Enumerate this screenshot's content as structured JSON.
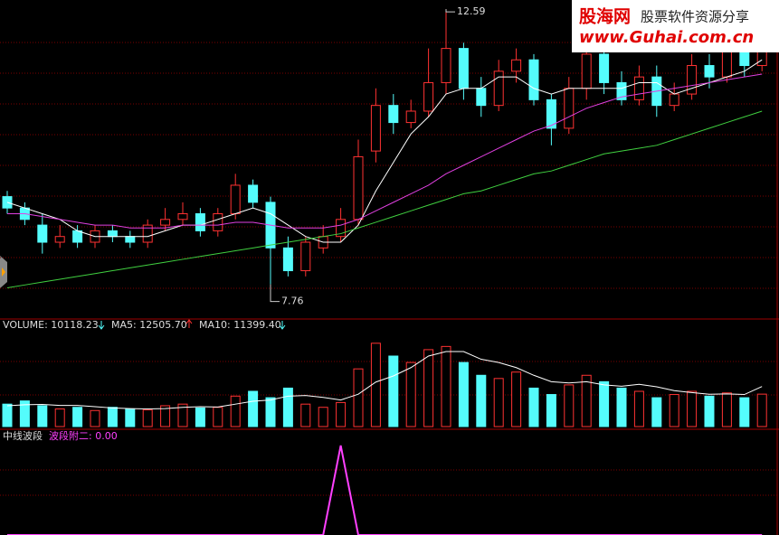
{
  "chart_data": {
    "type": "candlestick",
    "open": [
      9.3,
      9.1,
      8.8,
      8.5,
      8.7,
      8.5,
      8.7,
      8.6,
      8.5,
      8.8,
      8.9,
      9.0,
      8.7,
      9.0,
      9.5,
      9.2,
      8.4,
      8.0,
      8.4,
      8.6,
      8.9,
      10.1,
      10.9,
      10.6,
      10.8,
      11.3,
      11.9,
      11.2,
      10.9,
      11.5,
      11.7,
      11.0,
      10.5,
      11.2,
      11.8,
      11.3,
      11.0,
      11.4,
      10.9,
      11.1,
      11.6,
      11.4,
      11.9,
      11.6
    ],
    "high": [
      9.4,
      9.2,
      9.0,
      8.8,
      8.8,
      8.8,
      8.8,
      8.7,
      8.9,
      9.1,
      9.2,
      9.1,
      9.1,
      9.7,
      9.6,
      9.3,
      8.6,
      8.6,
      8.8,
      9.1,
      10.3,
      11.2,
      11.1,
      11.0,
      11.9,
      12.59,
      12.0,
      11.4,
      11.7,
      11.9,
      11.8,
      11.1,
      11.4,
      12.2,
      11.9,
      11.5,
      11.6,
      11.6,
      11.3,
      11.8,
      11.8,
      12.1,
      12.1,
      12.2
    ],
    "low": [
      9.0,
      8.8,
      8.3,
      8.4,
      8.4,
      8.4,
      8.5,
      8.4,
      8.4,
      8.7,
      8.8,
      8.6,
      8.6,
      8.9,
      9.1,
      7.76,
      7.9,
      7.9,
      8.3,
      8.5,
      8.8,
      9.9,
      10.4,
      10.5,
      10.7,
      11.1,
      11.0,
      10.7,
      10.8,
      11.3,
      10.9,
      10.2,
      10.4,
      11.0,
      11.1,
      10.9,
      10.9,
      10.7,
      10.8,
      11.0,
      11.2,
      11.3,
      11.4,
      11.5
    ],
    "close": [
      9.1,
      8.9,
      8.5,
      8.6,
      8.5,
      8.7,
      8.6,
      8.5,
      8.8,
      8.9,
      9.0,
      8.7,
      9.0,
      9.5,
      9.2,
      8.4,
      8.0,
      8.5,
      8.6,
      8.9,
      10.0,
      10.9,
      10.6,
      10.8,
      11.3,
      11.9,
      11.2,
      10.9,
      11.5,
      11.7,
      11.0,
      10.5,
      11.2,
      11.8,
      11.3,
      11.0,
      11.4,
      10.9,
      11.1,
      11.6,
      11.4,
      11.9,
      11.6,
      12.0
    ],
    "ylim": [
      7.2,
      12.75
    ],
    "up_color": "#ff3232",
    "down_color": "#54fcfc",
    "price_lines": [
      {
        "color": "#ffffff",
        "values": [
          9.2,
          9.1,
          9.0,
          8.9,
          8.7,
          8.6,
          8.6,
          8.6,
          8.6,
          8.7,
          8.8,
          8.8,
          8.9,
          9.0,
          9.1,
          9.0,
          8.8,
          8.6,
          8.5,
          8.5,
          8.8,
          9.4,
          9.9,
          10.4,
          10.7,
          11.1,
          11.2,
          11.2,
          11.4,
          11.4,
          11.2,
          11.1,
          11.2,
          11.2,
          11.2,
          11.2,
          11.3,
          11.3,
          11.1,
          11.2,
          11.3,
          11.4,
          11.5,
          11.7
        ]
      },
      {
        "color": "#e040e0",
        "values": [
          9.0,
          9.0,
          8.95,
          8.9,
          8.85,
          8.8,
          8.8,
          8.75,
          8.75,
          8.75,
          8.8,
          8.8,
          8.8,
          8.85,
          8.85,
          8.8,
          8.75,
          8.75,
          8.75,
          8.8,
          8.9,
          9.05,
          9.2,
          9.35,
          9.5,
          9.7,
          9.85,
          10.0,
          10.15,
          10.3,
          10.45,
          10.55,
          10.7,
          10.85,
          10.95,
          11.05,
          11.1,
          11.15,
          11.2,
          11.25,
          11.3,
          11.35,
          11.4,
          11.45
        ]
      },
      {
        "color": "#40d040",
        "values": [
          7.7,
          7.75,
          7.8,
          7.85,
          7.9,
          7.95,
          8.0,
          8.05,
          8.1,
          8.15,
          8.2,
          8.25,
          8.3,
          8.35,
          8.4,
          8.45,
          8.5,
          8.55,
          8.6,
          8.65,
          8.75,
          8.85,
          8.95,
          9.05,
          9.15,
          9.25,
          9.35,
          9.4,
          9.5,
          9.6,
          9.7,
          9.75,
          9.85,
          9.95,
          10.05,
          10.1,
          10.15,
          10.2,
          10.3,
          10.4,
          10.5,
          10.6,
          10.7,
          10.8
        ]
      }
    ],
    "volume_legend": [
      "VOLUME: 10118.23",
      "MA5: 12505.70",
      "MA10: 11399.40"
    ],
    "volume": [
      7000,
      8000,
      6500,
      5500,
      6000,
      5000,
      6000,
      5500,
      5200,
      6500,
      7000,
      5800,
      6000,
      9500,
      11000,
      9000,
      12000,
      7000,
      6000,
      7500,
      18000,
      26000,
      22000,
      20000,
      24000,
      25000,
      20000,
      16000,
      15000,
      17000,
      12000,
      10000,
      13000,
      16000,
      14000,
      12000,
      11000,
      9000,
      10000,
      11000,
      9500,
      10500,
      9000,
      10118.23
    ],
    "volume_ma5": [
      6500,
      6800,
      6900,
      6600,
      6600,
      6200,
      5800,
      5600,
      5500,
      5600,
      6000,
      6200,
      6100,
      7000,
      7900,
      8300,
      9500,
      9700,
      9100,
      8300,
      10100,
      13900,
      15800,
      18400,
      22000,
      23400,
      23400,
      21000,
      20000,
      18400,
      16000,
      14000,
      13600,
      14000,
      13000,
      12600,
      13200,
      12400,
      11200,
      10600,
      10100,
      10200,
      10000,
      12505.7
    ],
    "volume_ylim": [
      0,
      33000
    ],
    "indicator_title": "中线波段",
    "indicator_legend": "波段附二: 0.00",
    "indicator_values": [
      0,
      0,
      0,
      0,
      0,
      0,
      0,
      0,
      0,
      0,
      0,
      0,
      0,
      0,
      0,
      0,
      0,
      0,
      0,
      1,
      0,
      0,
      0,
      0,
      0,
      0,
      0,
      0,
      0,
      0,
      0,
      0,
      0,
      0,
      0,
      0,
      0,
      0,
      0,
      0,
      0,
      0,
      0,
      0
    ],
    "indicator_ylim": [
      0,
      1
    ],
    "indicator_color": "#ff40ff"
  },
  "watermark": {
    "site": "股海网",
    "slogan": "股票软件资源分享",
    "url": "www.Guhai.com.cn"
  }
}
